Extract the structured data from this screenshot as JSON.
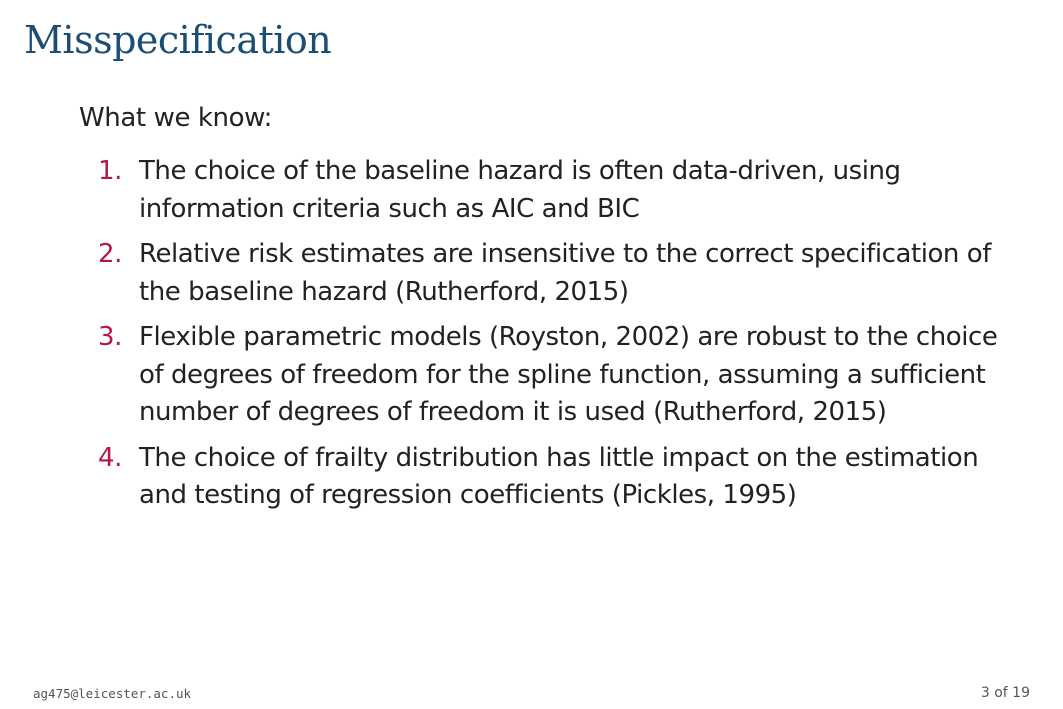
{
  "slide": {
    "title": "Misspecification",
    "intro": "What we know:",
    "items": [
      {
        "number": "1.",
        "text": "The choice of the baseline hazard is often data-driven, using information criteria such as AIC and BIC"
      },
      {
        "number": "2.",
        "text": "Relative risk estimates are insensitive to the correct specification of the baseline hazard (Rutherford, 2015)"
      },
      {
        "number": "3.",
        "text": "Flexible parametric models (Royston, 2002) are robust to the choice of degrees of freedom for the spline function, assuming a sufficient number of degrees of freedom it is used (Rutherford, 2015)"
      },
      {
        "number": "4.",
        "text": "The choice of frailty distribution has little impact on the estimation and testing of regression coefficients (Pickles, 1995)"
      }
    ]
  },
  "footer": {
    "email": "ag475@leicester.ac.uk",
    "page": "3 of 19"
  },
  "colors": {
    "title": "#1c4e73",
    "enumeration": "#b5174b",
    "body_text": "#222222"
  }
}
